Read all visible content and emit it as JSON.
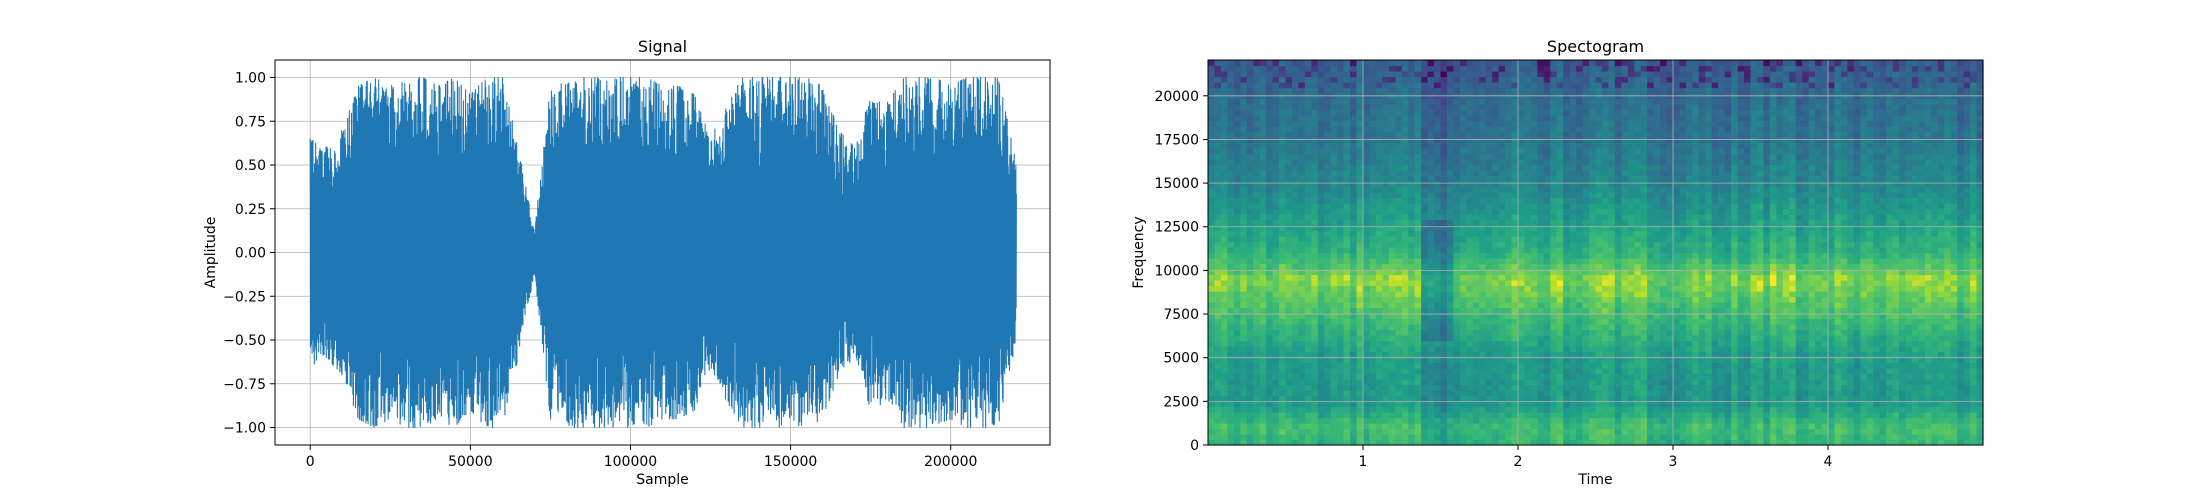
{
  "chart_data": [
    {
      "type": "line",
      "title": "Signal",
      "xlabel": "Sample",
      "ylabel": "Amplitude",
      "xlim": [
        -11000,
        231000
      ],
      "ylim": [
        -1.1,
        1.1
      ],
      "xticks": [
        0,
        50000,
        100000,
        150000,
        200000
      ],
      "xtick_labels": [
        "0",
        "50000",
        "100000",
        "150000",
        "200000"
      ],
      "yticks": [
        -1.0,
        -0.75,
        -0.5,
        -0.25,
        0.0,
        0.25,
        0.5,
        0.75,
        1.0
      ],
      "ytick_labels": [
        "−1.00",
        "−0.75",
        "−0.50",
        "−0.25",
        "0.00",
        "0.25",
        "0.50",
        "0.75",
        "1.00"
      ],
      "grid": true,
      "series": [
        {
          "color": "#1f77b4",
          "x_range": [
            0,
            220500
          ],
          "y_range": [
            -1.0,
            1.0
          ],
          "envelope_x": [
            0,
            5000,
            10000,
            15000,
            20000,
            25000,
            30000,
            35000,
            40000,
            45000,
            50000,
            55000,
            60000,
            65000,
            70000,
            75000,
            80000,
            85000,
            90000,
            95000,
            100000,
            105000,
            110000,
            115000,
            120000,
            125000,
            130000,
            135000,
            140000,
            145000,
            150000,
            155000,
            160000,
            165000,
            170000,
            175000,
            180000,
            185000,
            190000,
            195000,
            200000,
            205000,
            210000,
            215000,
            220500
          ],
          "envelope_y": [
            0.65,
            0.6,
            0.7,
            0.95,
            1.0,
            0.95,
            1.0,
            1.0,
            0.95,
            1.0,
            0.9,
            1.0,
            1.0,
            0.6,
            0.12,
            0.95,
            1.0,
            1.0,
            1.0,
            1.0,
            1.0,
            1.0,
            0.95,
            0.95,
            0.9,
            0.65,
            0.85,
            1.0,
            1.0,
            1.0,
            1.0,
            1.0,
            0.95,
            0.7,
            0.6,
            0.9,
            0.85,
            1.0,
            1.0,
            1.0,
            0.95,
            1.0,
            1.0,
            1.0,
            0.5
          ]
        }
      ]
    },
    {
      "type": "heatmap",
      "title": "Spectogram",
      "xlabel": "Time",
      "ylabel": "Frequency",
      "xlim": [
        0,
        5.0
      ],
      "ylim": [
        0,
        22050
      ],
      "xticks": [
        1,
        2,
        3,
        4
      ],
      "xtick_labels": [
        "1",
        "2",
        "3",
        "4"
      ],
      "yticks": [
        0,
        2500,
        5000,
        7500,
        10000,
        12500,
        15000,
        17500,
        20000
      ],
      "ytick_labels": [
        "0",
        "2500",
        "5000",
        "7500",
        "10000",
        "12500",
        "15000",
        "17500",
        "20000"
      ],
      "grid": true,
      "colormap": "viridis",
      "z_range": [
        0,
        1
      ],
      "band_intensity": [
        {
          "frequency": 0,
          "level": 0.72
        },
        {
          "frequency": 1000,
          "level": 0.78
        },
        {
          "frequency": 2500,
          "level": 0.6
        },
        {
          "frequency": 5000,
          "level": 0.62
        },
        {
          "frequency": 7500,
          "level": 0.78
        },
        {
          "frequency": 9500,
          "level": 0.9
        },
        {
          "frequency": 11000,
          "level": 0.72
        },
        {
          "frequency": 13000,
          "level": 0.62
        },
        {
          "frequency": 15000,
          "level": 0.52
        },
        {
          "frequency": 17500,
          "level": 0.44
        },
        {
          "frequency": 20000,
          "level": 0.4
        },
        {
          "frequency": 22050,
          "level": 0.32
        }
      ],
      "quiet_time_interval": [
        1.38,
        1.58
      ]
    }
  ]
}
